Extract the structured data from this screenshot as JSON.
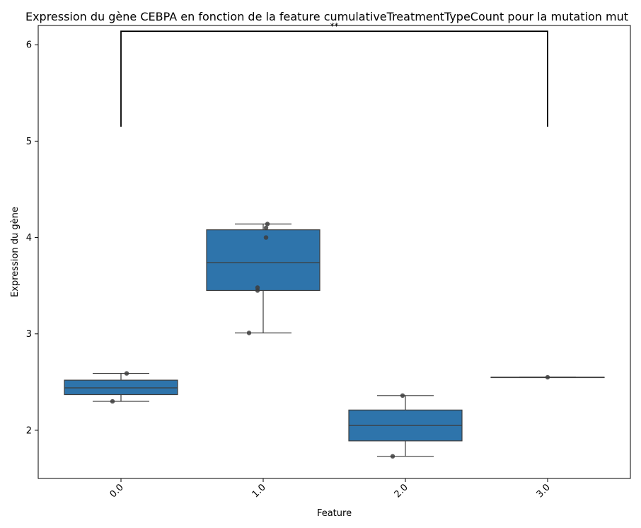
{
  "chart_data": {
    "type": "box",
    "title": "Expression du gène CEBPA en fonction de la feature cumulativeTreatmentTypeCount pour la mutation mut",
    "xlabel": "Feature",
    "ylabel": "Expression du gène",
    "categories": [
      "0.0",
      "1.0",
      "2.0",
      "3.0"
    ],
    "yticks": [
      "2",
      "3",
      "4",
      "5",
      "6"
    ],
    "ylim": [
      1.5,
      6.2
    ],
    "grid": false,
    "box_color": "#2e74ab",
    "point_color": "#3d3d3d",
    "boxes": [
      {
        "category": "0.0",
        "min": 2.3,
        "q1": 2.37,
        "median": 2.44,
        "q3": 2.52,
        "max": 2.59
      },
      {
        "category": "1.0",
        "min": 3.01,
        "q1": 3.45,
        "median": 3.74,
        "q3": 4.08,
        "max": 4.14
      },
      {
        "category": "2.0",
        "min": 1.73,
        "q1": 1.89,
        "median": 2.05,
        "q3": 2.21,
        "max": 2.36
      },
      {
        "category": "3.0",
        "min": 2.55,
        "q1": 2.55,
        "median": 2.55,
        "q3": 2.55,
        "max": 2.55
      }
    ],
    "points": [
      {
        "category": "0.0",
        "y": 2.59
      },
      {
        "category": "0.0",
        "y": 2.3
      },
      {
        "category": "1.0",
        "y": 4.14
      },
      {
        "category": "1.0",
        "y": 4.1
      },
      {
        "category": "1.0",
        "y": 4.0
      },
      {
        "category": "1.0",
        "y": 3.48
      },
      {
        "category": "1.0",
        "y": 3.45
      },
      {
        "category": "1.0",
        "y": 3.01
      },
      {
        "category": "2.0",
        "y": 2.36
      },
      {
        "category": "2.0",
        "y": 1.73
      },
      {
        "category": "3.0",
        "y": 2.55
      }
    ],
    "annotation": {
      "from": "0.0",
      "to": "3.0",
      "text": "**",
      "y_bottom": 5.15,
      "y_top": 6.14
    }
  }
}
